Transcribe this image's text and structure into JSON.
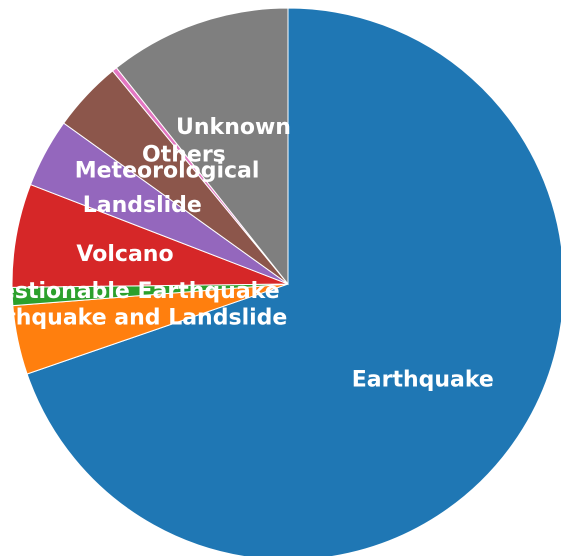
{
  "chart_data": {
    "type": "pie",
    "categories": [
      "Earthquake",
      "Earthquake and Landslide",
      "Questionable Earthquake",
      "Volcano",
      "Landslide",
      "Meteorological",
      "Others",
      "Unknown"
    ],
    "values": [
      72.5,
      4.2,
      1.1,
      6.3,
      4.2,
      4.3,
      0.3,
      11.1
    ],
    "colors": [
      "#1f77b4",
      "#ff7f0e",
      "#2ca02c",
      "#d62728",
      "#9467bd",
      "#8c564b",
      "#e377c2",
      "#7f7f7f"
    ],
    "start": "top",
    "direction": "clockwise",
    "legend": "none"
  }
}
